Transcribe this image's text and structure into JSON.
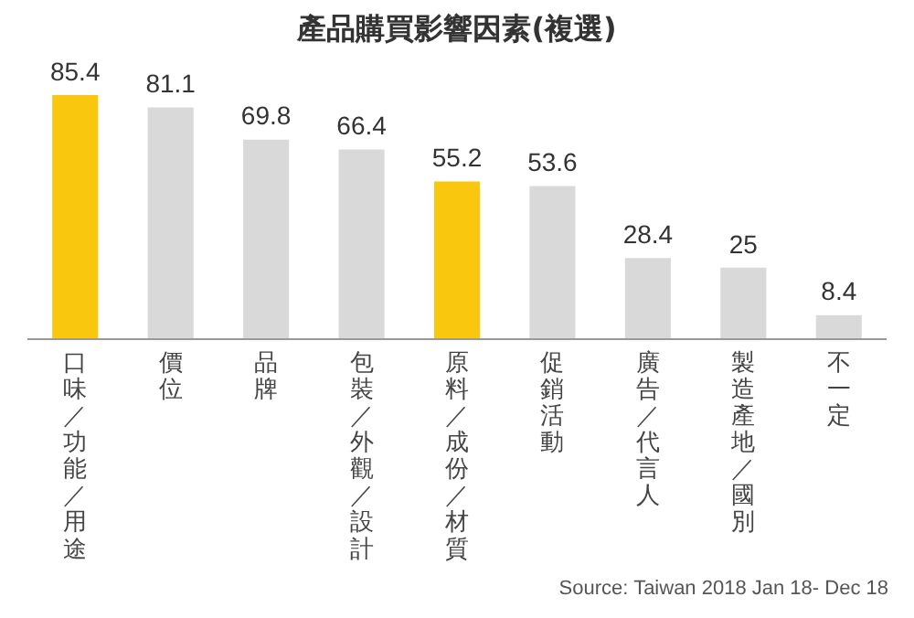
{
  "chart_data": {
    "type": "bar",
    "title": "產品購買影響因素(複選)",
    "categories": [
      "口味／功能／用途",
      "價位",
      "品牌",
      "包裝／外觀／設計",
      "原料／成份／材質",
      "促銷活動",
      "廣告／代言人",
      "製造產地／國別",
      "不一定"
    ],
    "values": [
      85.4,
      81.1,
      69.8,
      66.4,
      55.2,
      53.6,
      28.4,
      25,
      8.4
    ],
    "colors": [
      "#f9c80e",
      "#d9d9d9",
      "#d9d9d9",
      "#d9d9d9",
      "#f9c80e",
      "#d9d9d9",
      "#d9d9d9",
      "#d9d9d9",
      "#d9d9d9"
    ],
    "data_labels": true,
    "grid": false,
    "legend": false,
    "annotations": [
      "Source: Taiwan 2018 Jan 18- Dec 18"
    ]
  }
}
